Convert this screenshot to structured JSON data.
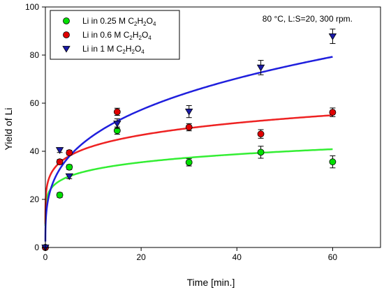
{
  "chart_data": {
    "type": "scatter",
    "title": "",
    "annotation": "80 °C, L:S=20, 300 rpm.",
    "xlabel": "Time [min.]",
    "ylabel": "Yield of Li",
    "xlim": [
      0,
      70
    ],
    "ylim": [
      0,
      100
    ],
    "x_ticks": [
      0,
      20,
      40,
      60
    ],
    "y_ticks": [
      0,
      20,
      40,
      60,
      80,
      100
    ],
    "grid": false,
    "legend_position": "top-left",
    "series": [
      {
        "name": "Li in 0.25 M C2H2O4",
        "legend_base": "Li in 0.25 M C",
        "marker": "circle",
        "color": "#00e000",
        "line_color": "#33ee33",
        "points": [
          {
            "x": 0,
            "y": 0,
            "err": 0
          },
          {
            "x": 3,
            "y": 21.8,
            "err": 1.0
          },
          {
            "x": 5,
            "y": 33.4,
            "err": 1.0
          },
          {
            "x": 15,
            "y": 48.6,
            "err": 1.5
          },
          {
            "x": 30,
            "y": 35.4,
            "err": 1.5
          },
          {
            "x": 45,
            "y": 39.6,
            "err": 2.5
          },
          {
            "x": 60,
            "y": 35.6,
            "err": 2.5
          }
        ],
        "fit": {
          "a": 24.0,
          "b": 0.13
        }
      },
      {
        "name": "Li in 0.6 M C2H2O4",
        "legend_base": "Li in 0.6 M C",
        "marker": "circle",
        "color": "#e00000",
        "line_color": "#ee2222",
        "points": [
          {
            "x": 0,
            "y": 0,
            "err": 0
          },
          {
            "x": 3,
            "y": 35.6,
            "err": 1.0
          },
          {
            "x": 5,
            "y": 39.4,
            "err": 1.0
          },
          {
            "x": 15,
            "y": 56.4,
            "err": 1.5
          },
          {
            "x": 30,
            "y": 50.0,
            "err": 1.5
          },
          {
            "x": 45,
            "y": 47.2,
            "err": 1.8
          },
          {
            "x": 60,
            "y": 56.2,
            "err": 1.8
          }
        ],
        "fit": {
          "a": 30.0,
          "b": 0.148
        }
      },
      {
        "name": "Li in 1 M C2H2O4",
        "legend_base": "Li in 1 M C",
        "marker": "triangle-down",
        "color": "#1a1aa8",
        "line_color": "#1f1fdd",
        "points": [
          {
            "x": 0,
            "y": 0,
            "err": 0
          },
          {
            "x": 3,
            "y": 40.5,
            "err": 1.0
          },
          {
            "x": 5,
            "y": 29.6,
            "err": 1.0
          },
          {
            "x": 15,
            "y": 51.5,
            "err": 2.0
          },
          {
            "x": 30,
            "y": 56.5,
            "err": 2.5
          },
          {
            "x": 45,
            "y": 74.8,
            "err": 3.0
          },
          {
            "x": 60,
            "y": 87.8,
            "err": 3.0
          }
        ],
        "fit": {
          "a": 23.5,
          "b": 0.297
        }
      }
    ]
  }
}
